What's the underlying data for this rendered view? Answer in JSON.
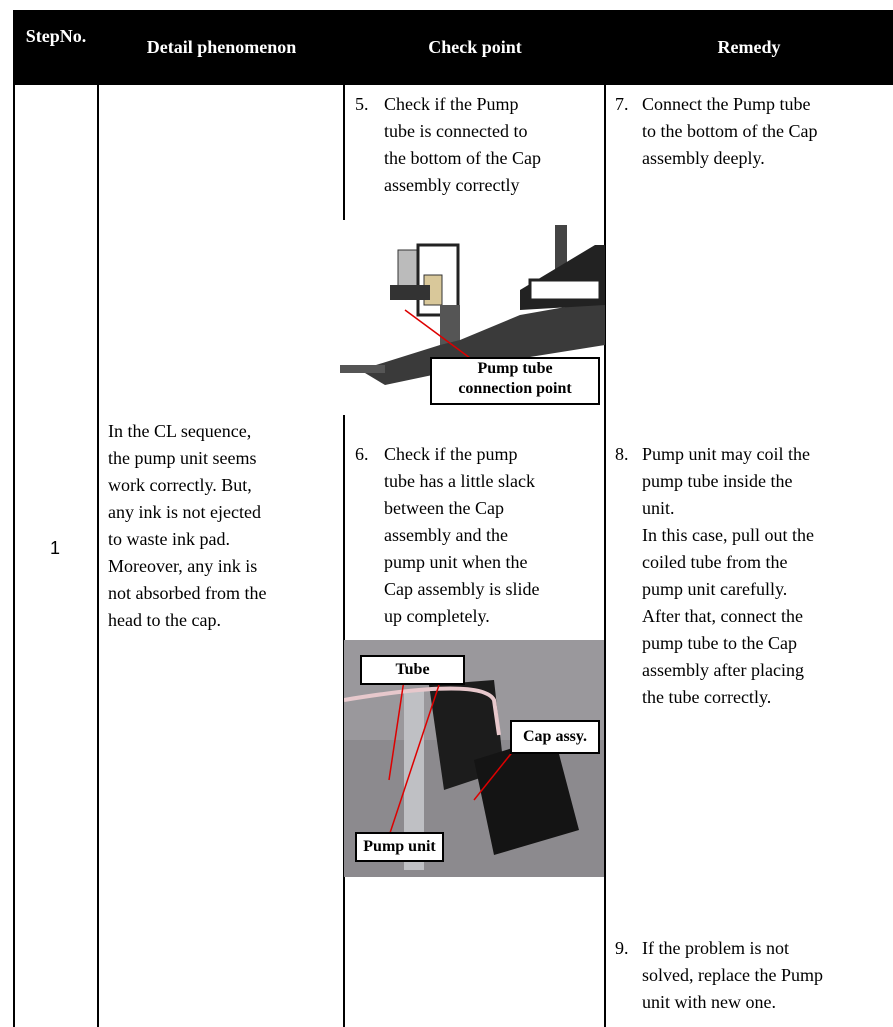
{
  "header": {
    "columns": [
      {
        "lines": [
          "Step",
          "No."
        ]
      },
      {
        "lines": [
          "Detail phenomenon"
        ]
      },
      {
        "lines": [
          "Check point"
        ]
      },
      {
        "lines": [
          "Remedy"
        ]
      }
    ]
  },
  "row": {
    "step": "1",
    "detail": [
      {
        "lines": [
          "In the CL sequence,",
          "the pump unit seems",
          "work correctly. But,",
          "any ink is not ejected",
          "to waste ink pad."
        ]
      },
      {
        "lines": [
          "Moreover, any ink is",
          "not absorbed  from the",
          "head to the cap."
        ]
      }
    ],
    "check_points": [
      {
        "number": "5.",
        "lines": [
          "Check if the Pump",
          "tube is connected to",
          "the bottom of the Cap",
          "assembly correctly"
        ]
      },
      {
        "number": "6.",
        "lines": [
          "Check if the pump",
          "tube has a little slack",
          "between the Cap",
          "assembly and the",
          "pump unit  when the",
          "Cap assembly is slide",
          "up completely."
        ]
      }
    ],
    "diagram_label": {
      "lines": [
        "Pump tube",
        "connection point"
      ]
    },
    "photo_labels": {
      "tube": "Tube",
      "cap": "Cap assy.",
      "pump": "Pump unit"
    },
    "remedies": [
      {
        "number": "7.",
        "lines": [
          "Connect the Pump tube",
          "to the bottom of the Cap",
          "assembly deeply."
        ]
      },
      {
        "number": "8.",
        "lines": [
          "Pump unit may coil the",
          "pump tube inside the",
          "unit.",
          "In this case, pull out the",
          "coiled tube from the",
          "pump unit carefully.",
          "After that, connect the",
          "pump tube to the Cap",
          "assembly after placing",
          "the tube correctly."
        ]
      },
      {
        "number": "9.",
        "lines": [
          "If the problem is not",
          "solved, replace the Pump",
          "unit with new one."
        ]
      }
    ]
  }
}
